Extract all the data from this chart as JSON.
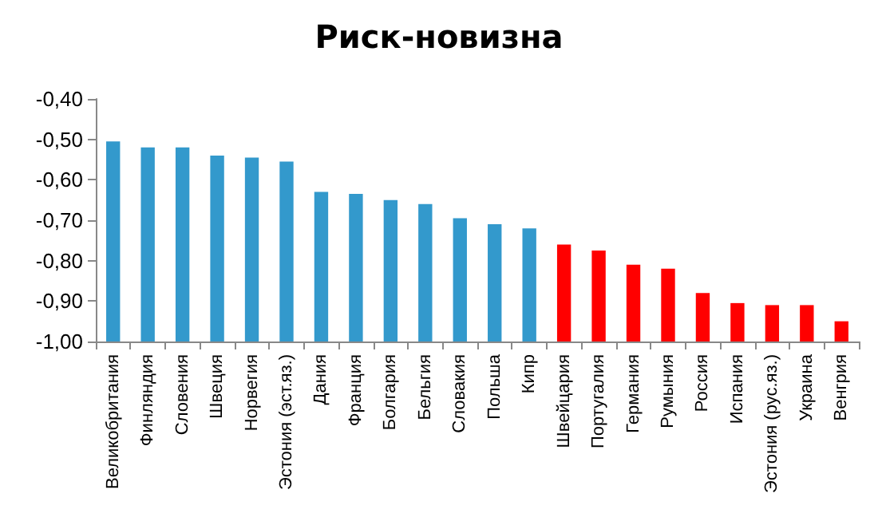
{
  "chart_data": {
    "type": "bar",
    "title": "Риск-новизна",
    "categories": [
      "Великобритания",
      "Финляндия",
      "Словения",
      "Швеция",
      "Норвегия",
      "Эстония (эст.яз.)",
      "Дания",
      "Франция",
      "Болгария",
      "Бельгия",
      "Словакия",
      "Польша",
      "Кипр",
      "Швейцария",
      "Португалия",
      "Германия",
      "Румыния",
      "Россия",
      "Испания",
      "Эстония (рус.яз.)",
      "Украина",
      "Венгрия"
    ],
    "values": [
      0.495,
      0.48,
      0.48,
      0.46,
      0.455,
      0.445,
      0.37,
      0.365,
      0.35,
      0.34,
      0.305,
      0.29,
      0.28,
      0.24,
      0.225,
      0.19,
      0.18,
      0.12,
      0.095,
      0.09,
      0.09,
      0.05
    ],
    "base": [
      -1,
      -1,
      -1,
      -1,
      -1,
      -1,
      -1,
      -1,
      -1,
      -1,
      -1,
      -1,
      -1,
      -1,
      -1,
      -1,
      -1,
      -1,
      -1,
      -1,
      -1,
      -1
    ],
    "colors": [
      "#3399cc",
      "#3399cc",
      "#3399cc",
      "#3399cc",
      "#3399cc",
      "#3399cc",
      "#3399cc",
      "#3399cc",
      "#3399cc",
      "#3399cc",
      "#3399cc",
      "#3399cc",
      "#3399cc",
      "#ff0000",
      "#ff0000",
      "#ff0000",
      "#ff0000",
      "#ff0000",
      "#ff0000",
      "#ff0000",
      "#ff0000",
      "#ff0000"
    ],
    "ylim": [
      -1,
      -0.4
    ],
    "yticks": [
      {
        "value": -1,
        "label": "-1,00"
      },
      {
        "value": -0.9,
        "label": "-0,90"
      },
      {
        "value": -0.8,
        "label": "-0,80"
      },
      {
        "value": -0.7,
        "label": "-0,70"
      },
      {
        "value": -0.6,
        "label": "-0,60"
      },
      {
        "value": -0.5,
        "label": "-0,50"
      },
      {
        "value": -0.4,
        "label": "-0,40"
      }
    ],
    "grid": false
  }
}
